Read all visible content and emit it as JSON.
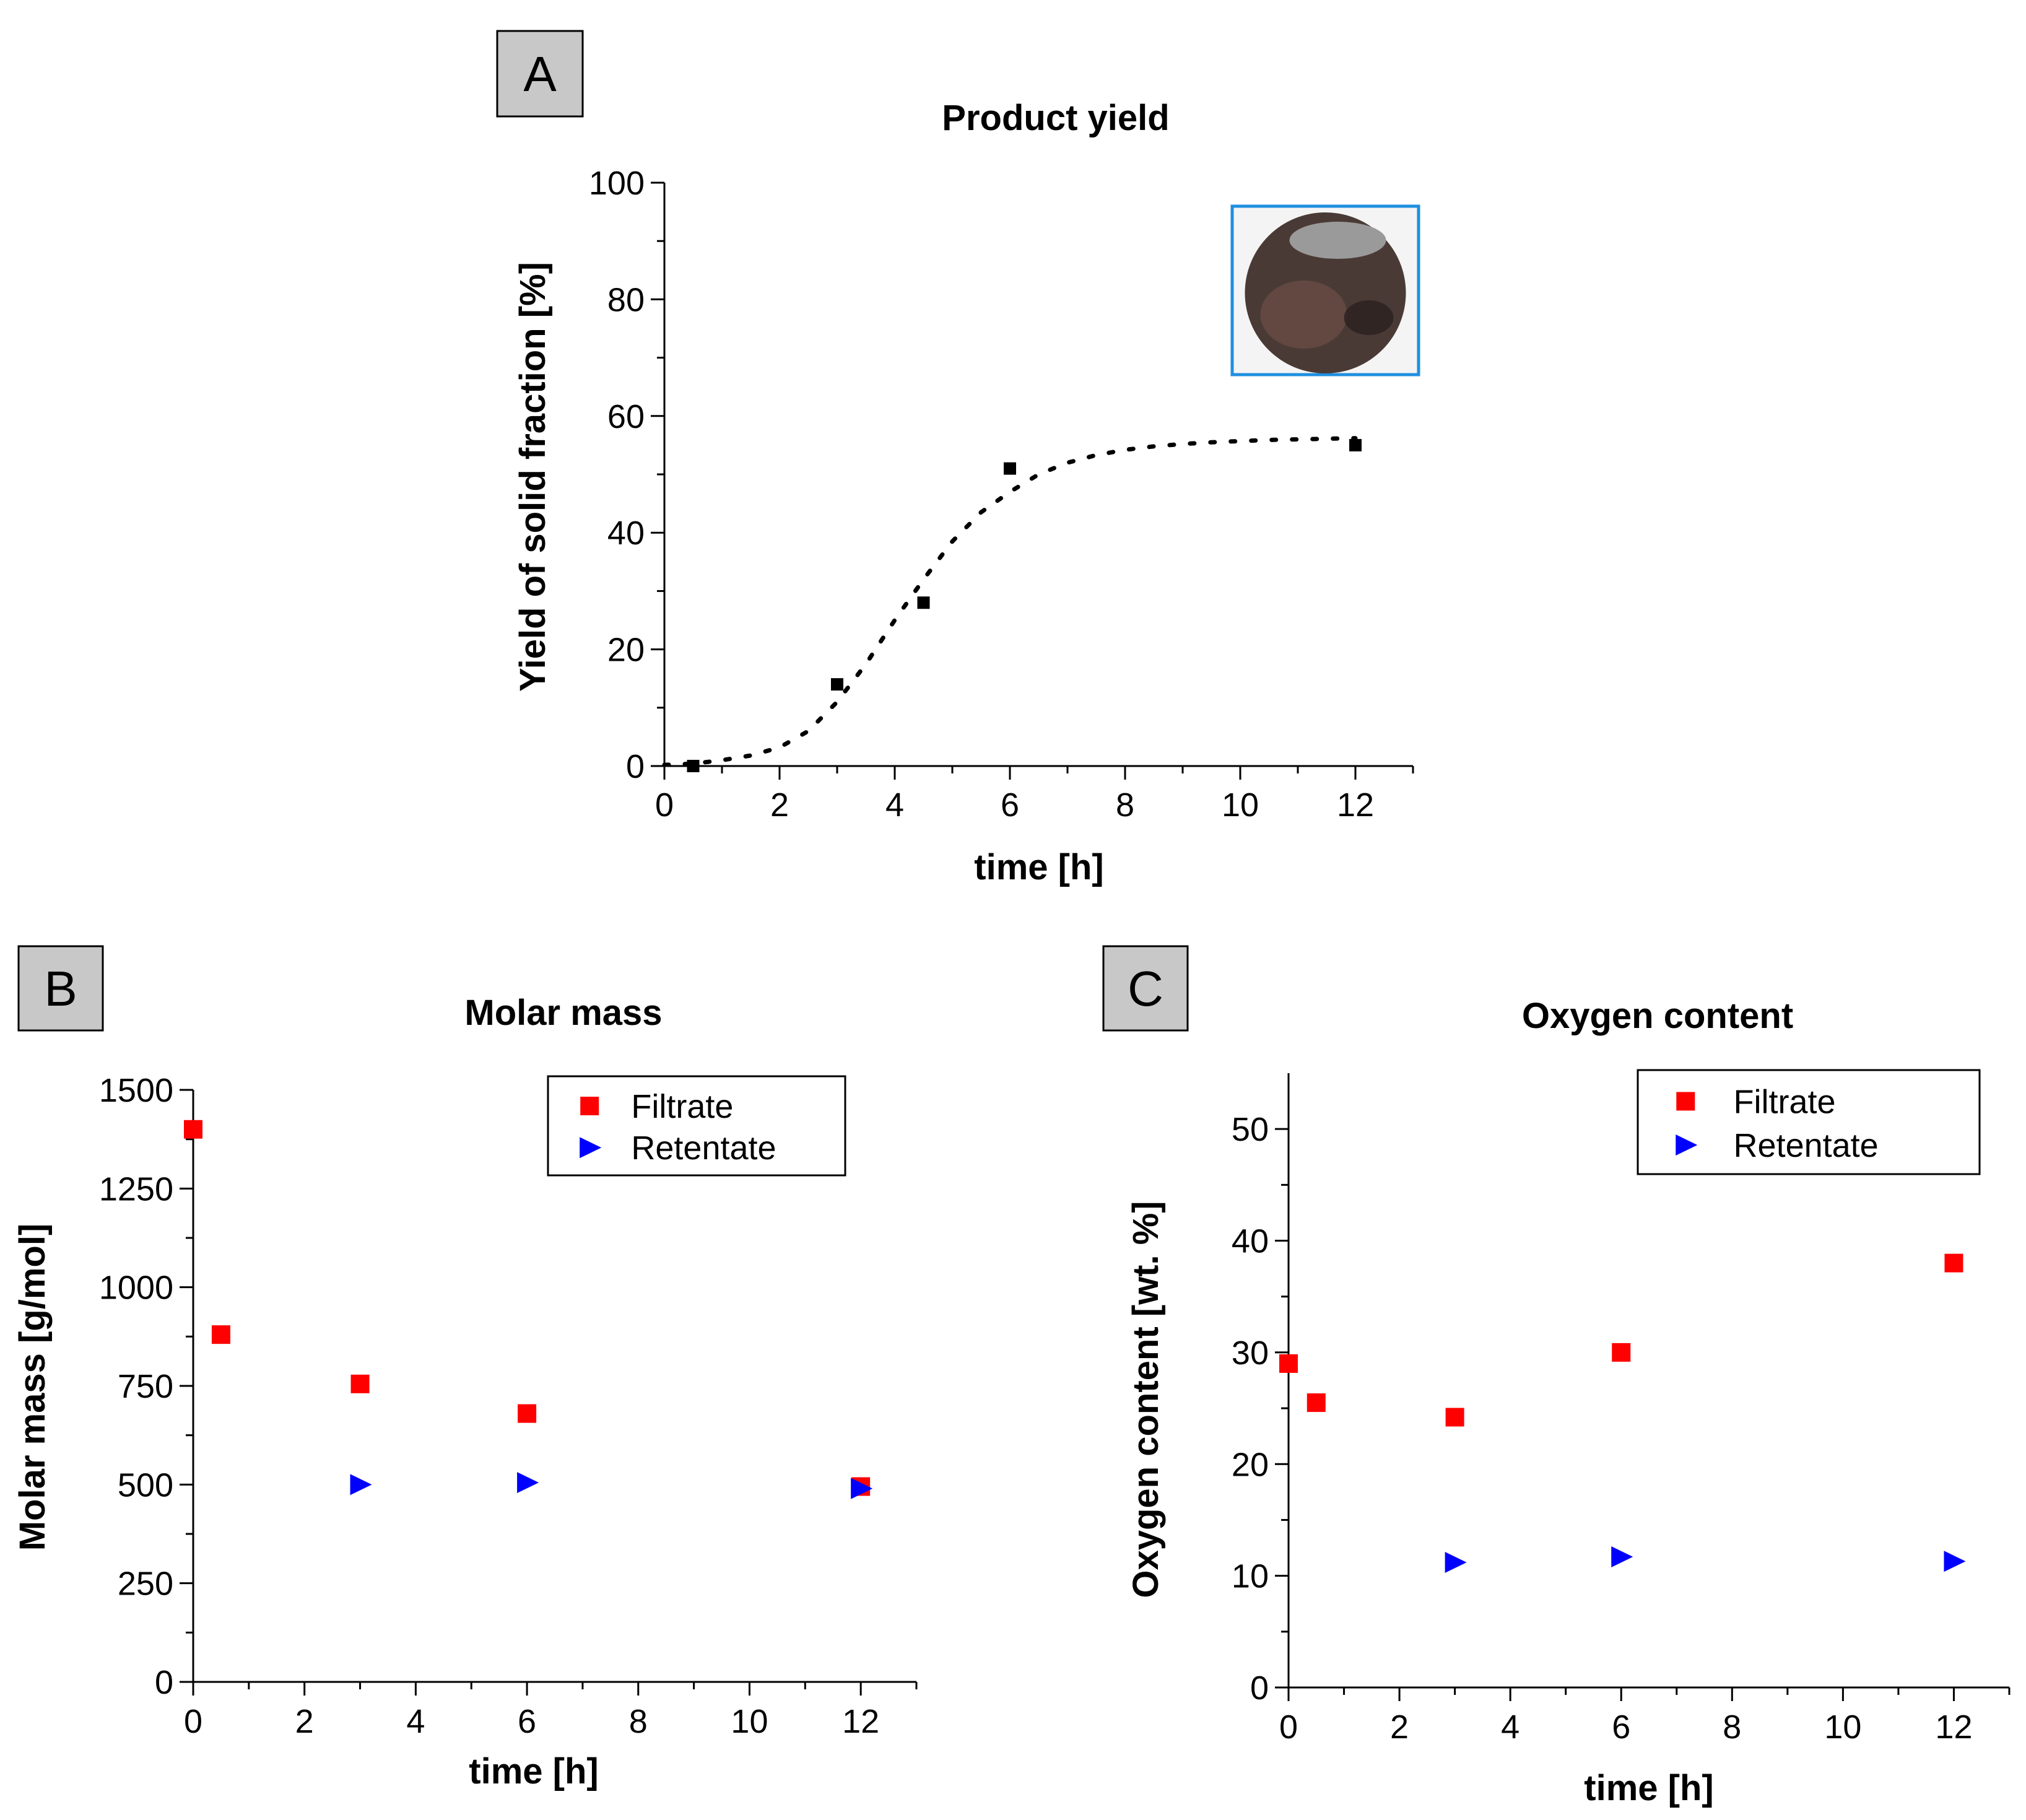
{
  "chart_data": [
    {
      "panel": "A",
      "type": "scatter",
      "title": "Product yield",
      "xlabel": "time [h]",
      "ylabel": "Yield of solid fraction [%]",
      "xlim": [
        0,
        13
      ],
      "ylim": [
        0,
        100
      ],
      "xticks": [
        0,
        2,
        4,
        6,
        8,
        10,
        12
      ],
      "yticks": [
        0,
        20,
        40,
        60,
        80,
        100
      ],
      "inset": "photo of dark solid product on a disc",
      "series": [
        {
          "name": "Yield",
          "color": "#000000",
          "marker": "square",
          "x": [
            0.5,
            3,
            4.5,
            6,
            12
          ],
          "y": [
            0,
            14,
            28,
            51,
            55
          ]
        },
        {
          "name": "Fit",
          "color": "#000000",
          "style": "dotted",
          "x": [
            0,
            0.5,
            1,
            1.5,
            2,
            2.5,
            3,
            3.5,
            4,
            4.5,
            5,
            5.5,
            6,
            6.5,
            7,
            7.5,
            8,
            8.5,
            9,
            9.5,
            10,
            10.5,
            11,
            11.5,
            12
          ],
          "y": [
            0.2,
            0.4,
            1,
            1.8,
            3.2,
            6,
            11,
            17.5,
            25,
            32,
            38.5,
            43.5,
            47,
            50,
            52,
            53.3,
            54.2,
            54.8,
            55.2,
            55.5,
            55.7,
            55.9,
            56,
            56.1,
            56.2
          ]
        }
      ]
    },
    {
      "panel": "B",
      "type": "scatter",
      "title": "Molar mass",
      "xlabel": "time [h]",
      "ylabel": "Molar mass [g/mol]",
      "xlim": [
        0,
        13
      ],
      "ylim": [
        0,
        1500
      ],
      "xticks": [
        0,
        2,
        4,
        6,
        8,
        10,
        12
      ],
      "yticks": [
        0,
        250,
        500,
        750,
        1000,
        1250,
        1500
      ],
      "legend": "top-right",
      "series": [
        {
          "name": "Filtrate",
          "color": "#ff0000",
          "marker": "square",
          "x": [
            0,
            0.5,
            3,
            6,
            12
          ],
          "y": [
            1400,
            880,
            755,
            680,
            495
          ]
        },
        {
          "name": "Retentate",
          "color": "#0000ff",
          "marker": "triangle-right",
          "x": [
            3,
            6,
            12
          ],
          "y": [
            500,
            505,
            490
          ]
        }
      ]
    },
    {
      "panel": "C",
      "type": "scatter",
      "title": "Oxygen content",
      "xlabel": "time [h]",
      "ylabel": "Oxygen content [wt. %]",
      "xlim": [
        0,
        13
      ],
      "ylim": [
        0,
        55
      ],
      "xticks": [
        0,
        2,
        4,
        6,
        8,
        10,
        12
      ],
      "yticks": [
        0,
        10,
        20,
        30,
        40,
        50
      ],
      "legend": "top-right",
      "series": [
        {
          "name": "Filtrate",
          "color": "#ff0000",
          "marker": "square",
          "x": [
            0,
            0.5,
            3,
            6,
            12
          ],
          "y": [
            29,
            25.5,
            24.2,
            30,
            38
          ]
        },
        {
          "name": "Retentate",
          "color": "#0000ff",
          "marker": "triangle-right",
          "x": [
            3,
            6,
            12
          ],
          "y": [
            11.2,
            11.7,
            11.3
          ]
        }
      ]
    }
  ]
}
